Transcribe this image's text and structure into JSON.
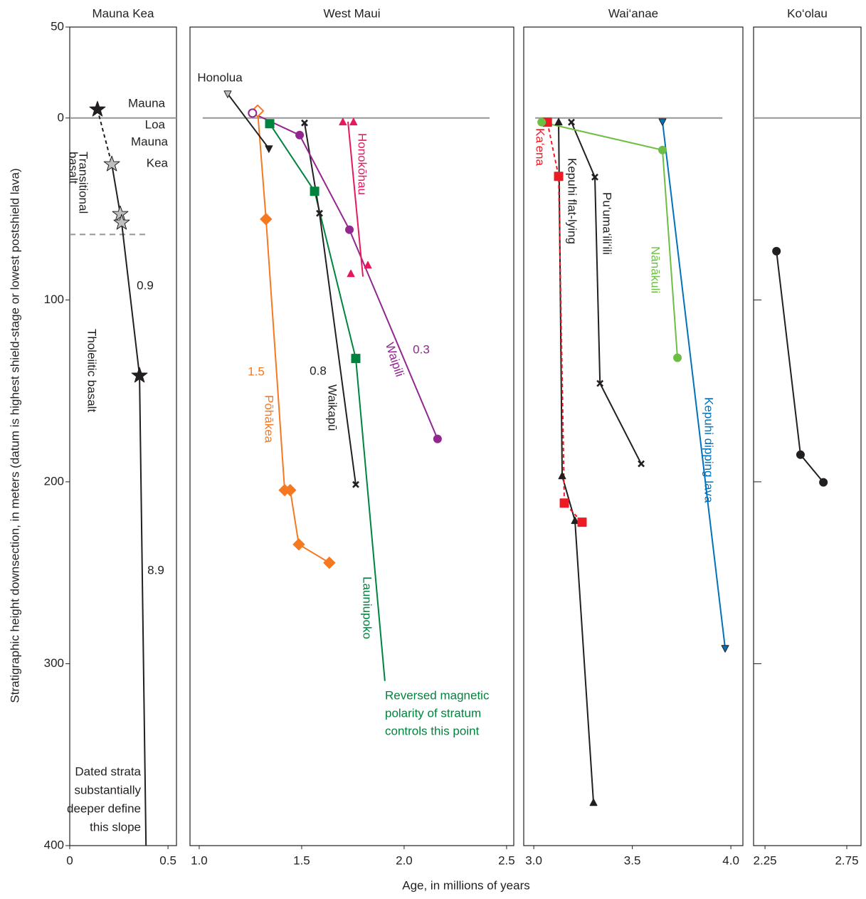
{
  "figure": {
    "xlabel": "Age, in millions of years"
  },
  "chart_data": [
    {
      "type": "line",
      "title": "Mauna Kea",
      "ylabel": "Stratigraphic height downsection, in meters (datum is highest shield-stage or lowest postshield lava)",
      "xlim": [
        0,
        0.543
      ],
      "xticks": [
        0,
        0.5
      ],
      "ylim": [
        -50,
        400
      ],
      "yticks": [
        {
          "value": -50,
          "label": "50"
        },
        0,
        100,
        200,
        300,
        400
      ],
      "reference_lines": [
        {
          "value": 0,
          "color": "#939598"
        },
        {
          "value": 64,
          "color": "#939598",
          "dash": true,
          "x": [
            0,
            0.388
          ]
        }
      ],
      "series": [
        {
          "marker": "star",
          "color": "#231f20",
          "x": [
            0.141
          ],
          "y": [
            -4.7
          ],
          "link": "dashed"
        },
        {
          "marker": "star",
          "color": "#231f20",
          "marker_colors": [
            "#bcbec0",
            "#bcbec0",
            "#bcbec0",
            "#231f20",
            null
          ],
          "x": [
            0.214,
            0.257,
            0.264,
            0.355,
            0.388
          ],
          "y": [
            25.4,
            52.8,
            57.5,
            141.6,
            400
          ]
        }
      ],
      "annotations": [
        {
          "lines": [
            "Mauna",
            "Loa"
          ]
        },
        {
          "lines": [
            "Mauna",
            "Kea"
          ]
        },
        {
          "lines": [
            "Transitional",
            "basalt"
          ]
        },
        {
          "lines": [
            0.9
          ]
        },
        {
          "lines": [
            "Tholeiitic basalt"
          ]
        },
        {
          "lines": [
            8.9
          ]
        },
        {
          "lines": [
            "Dated strata",
            "substantially",
            "deeper define",
            "this slope"
          ]
        }
      ]
    },
    {
      "type": "line",
      "title": "West Maui",
      "xlim": [
        0.955,
        2.535
      ],
      "xticks": [
        {
          "value": 1,
          "label": "1.0"
        },
        1.5,
        {
          "value": 2,
          "label": "2.0"
        },
        2.5
      ],
      "ylim": [
        -50,
        400
      ],
      "reference_lines": [
        {
          "value": 0,
          "color": "#939598",
          "x": [
            1.017,
            2.417
          ]
        }
      ],
      "series": [
        {
          "marker": "diamond",
          "color": "#f47920",
          "hollow": [
            true,
            false,
            false,
            false,
            false,
            false
          ],
          "x": [
            1.285,
            1.326,
            1.417,
            1.444,
            1.486,
            1.635
          ],
          "y": [
            -3.9,
            55.6,
            204.6,
            204.6,
            234.4,
            244.5
          ]
        },
        {
          "marker": "square",
          "color": "#00843d",
          "marker_colors": [
            "#00843d",
            "#00843d",
            "#00843d",
            null
          ],
          "x": [
            1.344,
            1.563,
            1.764,
            1.906
          ],
          "y": [
            3.1,
            40.3,
            132.2,
            309.5
          ]
        },
        {
          "marker": "x",
          "color": "#231f20",
          "x": [
            1.514,
            1.587,
            1.764
          ],
          "y": [
            2.7,
            52.4,
            201.5
          ]
        },
        {
          "marker": "circle",
          "color": "#92278f",
          "hollow": [
            true,
            false,
            false,
            false
          ],
          "x": [
            1.26,
            1.49,
            1.733,
            2.163
          ],
          "y": [
            -2.7,
            9.4,
            61.4,
            176.4
          ]
        },
        {
          "marker": "triangle-down",
          "color": "#231f20",
          "marker_colors": [
            "#bcbec0",
            "#231f20"
          ],
          "x": [
            1.139,
            1.34
          ],
          "y": [
            -13.3,
            16.8
          ]
        },
        {
          "marker": "triangle-up",
          "color": "#e6195f",
          "line": false,
          "x": [
            1.701,
            1.753,
            1.74,
            1.823
          ],
          "y": [
            2.3,
            2.3,
            85.7,
            81.0
          ]
        },
        {
          "marker": "none",
          "color": "#e6195f",
          "x": [
            1.726,
            1.799
          ],
          "y": [
            2.0,
            87.2
          ]
        }
      ],
      "annotations": [
        {
          "lines": [
            "Honolua"
          ]
        },
        {
          "lines": [
            "Pōhākea"
          ],
          "color": "#f47920"
        },
        {
          "lines": [
            1.5
          ],
          "color": "#f47920"
        },
        {
          "lines": [
            "Waikapū"
          ]
        },
        {
          "lines": [
            0.8
          ]
        },
        {
          "lines": [
            "Waipili"
          ],
          "color": "#92278f"
        },
        {
          "lines": [
            0.3
          ],
          "color": "#92278f"
        },
        {
          "lines": [
            "Honokōhau"
          ],
          "color": "#e6195f"
        },
        {
          "lines": [
            "Launiupoko"
          ],
          "color": "#00843d"
        },
        {
          "lines": [
            "Reversed magnetic",
            "polarity of stratum",
            "controls this point"
          ],
          "color": "#00843d"
        }
      ]
    },
    {
      "type": "line",
      "title": "Wai‘anae",
      "xlim": [
        2.949,
        4.061
      ],
      "xticks": [
        {
          "value": 3,
          "label": "3.0"
        },
        3.5,
        {
          "value": 4,
          "label": "4.0"
        }
      ],
      "ylim": [
        -50,
        400
      ],
      "reference_lines": [
        {
          "value": 0,
          "color": "#939598",
          "x": [
            3.007,
            3.957
          ]
        }
      ],
      "series": [
        {
          "marker": "triangle-up",
          "color": "#231f20",
          "x": [
            3.126,
            3.144,
            3.209,
            3.303
          ],
          "y": [
            2.3,
            196.8,
            221.4,
            376.4
          ]
        },
        {
          "marker": "square",
          "color": "#ed1c24",
          "dash": true,
          "x": [
            3.069,
            3.126,
            3.155,
            3.245
          ],
          "y": [
            2.3,
            32.1,
            211.7,
            222.2
          ]
        },
        {
          "marker": "x",
          "color": "#231f20",
          "x": [
            3.191,
            3.31,
            3.336,
            3.545
          ],
          "y": [
            2.3,
            32.5,
            145.9,
            190.1
          ]
        },
        {
          "marker": "circle",
          "color": "#6dbe45",
          "x": [
            3.04,
            3.653,
            3.729
          ],
          "y": [
            2.3,
            17.6,
            131.8
          ]
        },
        {
          "marker": "triangle-down",
          "color": "#0072bc",
          "x": [
            3.653,
            3.971
          ],
          "y": [
            2.0,
            291.5
          ]
        }
      ],
      "annotations": [
        {
          "lines": [
            "Ka‘ena"
          ],
          "color": "#ed1c24"
        },
        {
          "lines": [
            "Kepuhi flat-lying"
          ]
        },
        {
          "lines": [
            "Pu‘uma‘ili‘ili"
          ]
        },
        {
          "lines": [
            "Nānākuli"
          ],
          "color": "#6dbe45"
        },
        {
          "lines": [
            "Kepuhi dipping lava"
          ],
          "color": "#0072bc"
        }
      ]
    },
    {
      "type": "line",
      "title": "Ko‘olau",
      "xlim": [
        2.18,
        2.837
      ],
      "xticks": [
        2.25,
        2.75
      ],
      "ylim": [
        -50,
        400
      ],
      "yticks": [
        100,
        200,
        300
      ],
      "ytick_labels": false,
      "reference_lines": [
        {
          "value": 0,
          "color": "#939598"
        }
      ],
      "series": [
        {
          "marker": "circle",
          "color": "#231f20",
          "x": [
            2.32,
            2.467,
            2.607
          ],
          "y": [
            73.2,
            185.1,
            200.3
          ]
        }
      ],
      "annotations": []
    }
  ]
}
